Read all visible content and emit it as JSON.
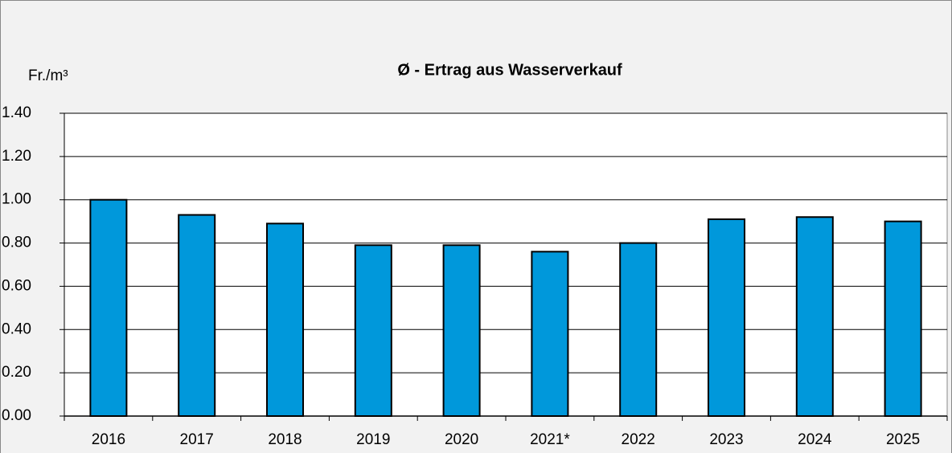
{
  "chart_data": {
    "type": "bar",
    "title": "Ø - Ertrag aus Wasserverkauf",
    "y_label": "Fr./m³",
    "categories": [
      "2016",
      "2017",
      "2018",
      "2019",
      "2020",
      "2021*",
      "2022",
      "2023",
      "2024",
      "2025"
    ],
    "values": [
      1.0,
      0.93,
      0.89,
      0.79,
      0.79,
      0.76,
      0.8,
      0.91,
      0.92,
      0.9
    ],
    "color": "#0098db",
    "ylim": [
      0,
      1.4
    ],
    "yticks": [
      {
        "value": 0,
        "label": "0.00"
      },
      {
        "value": 0.2,
        "label": "0.20"
      },
      {
        "value": 0.4,
        "label": "0.40"
      },
      {
        "value": 0.6,
        "label": "0.60"
      },
      {
        "value": 0.8,
        "label": "0.80"
      },
      {
        "value": 1.0,
        "label": "1.00"
      },
      {
        "value": 1.2,
        "label": "1.20"
      },
      {
        "value": 1.4,
        "label": "1.40"
      }
    ],
    "grid": true
  }
}
